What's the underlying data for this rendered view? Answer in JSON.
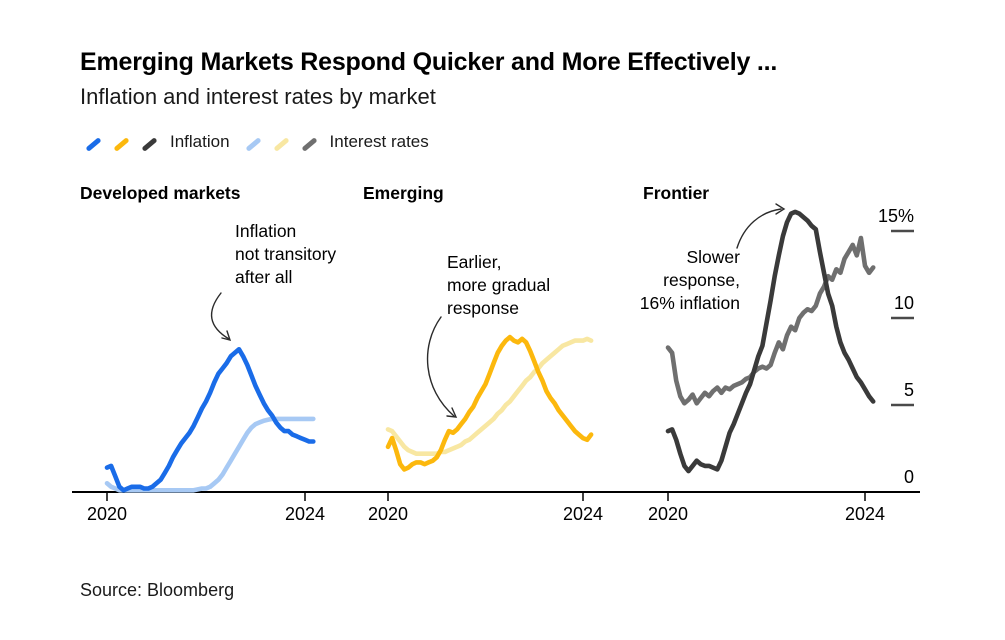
{
  "header": {
    "title": "Emerging Markets Respond Quicker and More Effectively ...",
    "subtitle": "Inflation and interest rates by market"
  },
  "legend": {
    "groups": [
      {
        "label": "Inflation",
        "swatches": [
          "#1a6ce8",
          "#fcb80d",
          "#3a3a3a"
        ]
      },
      {
        "label": "Interest rates",
        "swatches": [
          "#a7c9f4",
          "#f8e7a2",
          "#6f6f6f"
        ]
      }
    ]
  },
  "chart_data": {
    "type": "line",
    "x_range_months": [
      "2020-01",
      "2024-03"
    ],
    "x_tick_labels": [
      "2020",
      "2024"
    ],
    "ylim": [
      0,
      17
    ],
    "y_axis": {
      "ticks": [
        {
          "value": 0,
          "label": "0"
        },
        {
          "value": 5,
          "label": "5"
        },
        {
          "value": 10,
          "label": "10"
        },
        {
          "value": 15,
          "label": "15%"
        }
      ]
    },
    "panels": [
      {
        "title": "Developed markets",
        "annotation": {
          "lines": [
            "Inflation",
            "not transitory",
            "after all"
          ]
        },
        "series": [
          {
            "name": "Inflation",
            "color": "#1a6ce8",
            "values": [
              1.4,
              1.5,
              0.9,
              0.3,
              0.1,
              0.2,
              0.3,
              0.3,
              0.3,
              0.2,
              0.2,
              0.3,
              0.5,
              0.7,
              1.1,
              1.5,
              2.0,
              2.4,
              2.8,
              3.1,
              3.4,
              3.8,
              4.3,
              4.8,
              5.2,
              5.7,
              6.3,
              6.8,
              7.1,
              7.4,
              7.8,
              8.0,
              8.2,
              7.8,
              7.3,
              6.7,
              6.1,
              5.6,
              5.1,
              4.7,
              4.4,
              4.0,
              3.7,
              3.5,
              3.5,
              3.3,
              3.2,
              3.1,
              3.0,
              2.9,
              2.9
            ]
          },
          {
            "name": "Interest rates",
            "color": "#a7c9f4",
            "values": [
              0.5,
              0.3,
              0.2,
              0.1,
              0.1,
              0.1,
              0.1,
              0.1,
              0.1,
              0.1,
              0.1,
              0.1,
              0.1,
              0.1,
              0.1,
              0.1,
              0.1,
              0.1,
              0.1,
              0.1,
              0.1,
              0.1,
              0.15,
              0.2,
              0.2,
              0.3,
              0.5,
              0.7,
              1.0,
              1.4,
              1.8,
              2.2,
              2.6,
              3.0,
              3.4,
              3.7,
              3.9,
              4.0,
              4.1,
              4.15,
              4.2,
              4.2,
              4.2,
              4.2,
              4.2,
              4.2,
              4.2,
              4.2,
              4.2,
              4.2,
              4.2
            ]
          }
        ]
      },
      {
        "title": "Emerging",
        "annotation": {
          "lines": [
            "Earlier,",
            "more gradual",
            "response"
          ]
        },
        "series": [
          {
            "name": "Inflation",
            "color": "#fcb80d",
            "values": [
              2.6,
              3.1,
              2.4,
              1.6,
              1.3,
              1.4,
              1.6,
              1.7,
              1.7,
              1.6,
              1.7,
              1.8,
              2.0,
              2.4,
              3.0,
              3.5,
              3.4,
              3.6,
              3.9,
              4.2,
              4.6,
              4.9,
              5.4,
              5.8,
              6.2,
              6.8,
              7.4,
              8.0,
              8.4,
              8.7,
              8.9,
              8.7,
              8.6,
              8.8,
              8.6,
              8.1,
              7.5,
              6.9,
              6.4,
              5.8,
              5.4,
              5.1,
              4.7,
              4.4,
              4.1,
              3.8,
              3.5,
              3.3,
              3.1,
              3.0,
              3.3
            ]
          },
          {
            "name": "Interest rates",
            "color": "#f8e7a2",
            "values": [
              3.6,
              3.5,
              3.2,
              2.9,
              2.6,
              2.4,
              2.3,
              2.2,
              2.2,
              2.2,
              2.2,
              2.2,
              2.2,
              2.3,
              2.3,
              2.4,
              2.5,
              2.6,
              2.7,
              2.9,
              3.0,
              3.2,
              3.4,
              3.6,
              3.8,
              4.0,
              4.2,
              4.5,
              4.7,
              5.0,
              5.2,
              5.5,
              5.8,
              6.1,
              6.4,
              6.6,
              6.9,
              7.1,
              7.4,
              7.6,
              7.8,
              8.0,
              8.2,
              8.4,
              8.5,
              8.6,
              8.7,
              8.7,
              8.7,
              8.8,
              8.7
            ]
          }
        ]
      },
      {
        "title": "Frontier",
        "annotation": {
          "lines": [
            "Slower",
            "response,",
            "16% inflation"
          ]
        },
        "series": [
          {
            "name": "Inflation",
            "color": "#3a3a3a",
            "values": [
              3.5,
              3.6,
              3.0,
              2.2,
              1.5,
              1.2,
              1.5,
              1.8,
              1.6,
              1.5,
              1.5,
              1.4,
              1.3,
              1.8,
              2.6,
              3.4,
              3.9,
              4.5,
              5.1,
              5.7,
              6.2,
              7.0,
              7.8,
              8.4,
              9.7,
              11.0,
              12.4,
              13.6,
              14.7,
              15.5,
              16.0,
              16.1,
              16.0,
              15.8,
              15.6,
              15.3,
              15.1,
              13.8,
              12.6,
              11.4,
              10.7,
              9.5,
              8.6,
              8.0,
              7.6,
              7.1,
              6.6,
              6.3,
              5.9,
              5.5,
              5.2
            ]
          },
          {
            "name": "Interest rates",
            "color": "#6f6f6f",
            "values": [
              8.3,
              8.0,
              6.4,
              5.5,
              5.1,
              5.3,
              5.6,
              5.1,
              5.4,
              5.7,
              5.5,
              5.8,
              6.0,
              5.7,
              6.0,
              5.9,
              6.1,
              6.2,
              6.3,
              6.5,
              6.6,
              6.9,
              7.1,
              7.2,
              7.1,
              7.3,
              8.0,
              8.6,
              8.2,
              9.0,
              9.5,
              9.3,
              10.0,
              10.3,
              10.5,
              10.4,
              10.7,
              11.4,
              11.8,
              12.4,
              12.2,
              12.8,
              12.6,
              13.4,
              13.8,
              14.2,
              13.6,
              14.6,
              13.0,
              12.6,
              12.9
            ]
          }
        ]
      }
    ]
  },
  "footer": {
    "source": "Source: Bloomberg"
  }
}
